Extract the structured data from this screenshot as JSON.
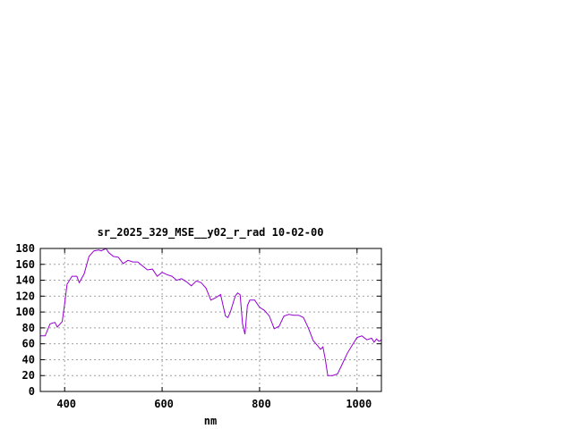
{
  "chart_data": {
    "type": "line",
    "title": "sr_2025_329_MSE__y02_r_rad 10-02-00",
    "xlabel": "nm",
    "ylabel": "",
    "xlim": [
      350,
      1050
    ],
    "ylim": [
      0,
      180
    ],
    "xticks": [
      400,
      600,
      800,
      1000
    ],
    "yticks": [
      0,
      20,
      40,
      60,
      80,
      100,
      120,
      140,
      160,
      180
    ],
    "grid": true,
    "series_color": "#9400d3",
    "series": [
      {
        "x": [
          350,
          360,
          370,
          380,
          385,
          395,
          400,
          405,
          415,
          425,
          430,
          440,
          450,
          460,
          470,
          475,
          485,
          490,
          500,
          510,
          520,
          530,
          540,
          550,
          560,
          570,
          580,
          590,
          600,
          610,
          620,
          630,
          640,
          650,
          660,
          670,
          680,
          690,
          700,
          710,
          720,
          730,
          735,
          740,
          750,
          755,
          760,
          765,
          770,
          775,
          780,
          790,
          800,
          810,
          820,
          830,
          840,
          850,
          860,
          870,
          880,
          890,
          900,
          910,
          920,
          925,
          930,
          935,
          940,
          950,
          960,
          970,
          980,
          990,
          1000,
          1010,
          1020,
          1030,
          1035,
          1040,
          1045,
          1050
        ],
        "y": [
          70,
          70,
          85,
          87,
          81,
          88,
          110,
          135,
          145,
          145,
          137,
          148,
          170,
          177,
          178,
          177,
          180,
          175,
          170,
          169,
          161,
          165,
          163,
          163,
          158,
          153,
          154,
          145,
          150,
          147,
          145,
          140,
          142,
          138,
          133,
          139,
          137,
          130,
          115,
          118,
          122,
          95,
          93,
          100,
          120,
          124,
          122,
          85,
          72,
          108,
          115,
          115,
          106,
          102,
          95,
          79,
          82,
          95,
          97,
          96,
          96,
          93,
          80,
          64,
          57,
          53,
          56,
          40,
          20,
          20,
          22,
          35,
          48,
          58,
          68,
          70,
          65,
          67,
          62,
          66,
          63,
          65
        ]
      }
    ]
  }
}
